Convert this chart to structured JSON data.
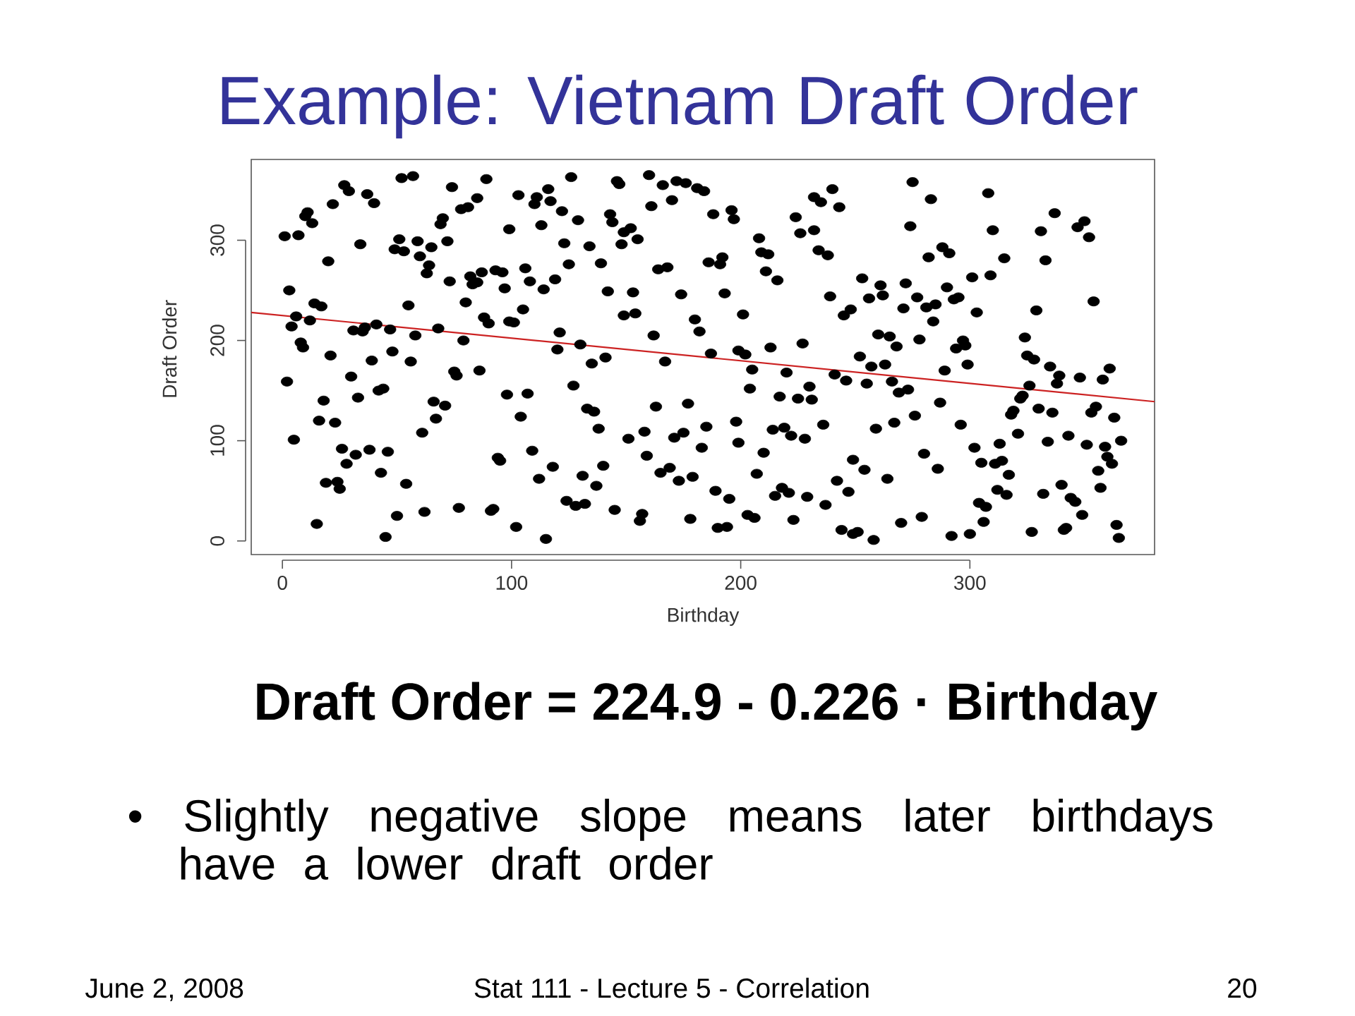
{
  "chart_data": {
    "type": "scatter",
    "title": "Example:  Vietnam Draft Order",
    "xlabel": "Birthday",
    "ylabel": "Draft Order",
    "xlim": [
      -13.6,
      380.6
    ],
    "ylim": [
      -13.6,
      380.6
    ],
    "xticks": [
      0,
      100,
      200,
      300
    ],
    "yticks": [
      0,
      100,
      200,
      300
    ],
    "series": [
      {
        "color": "#000000",
        "marker": "circle",
        "x": [
          52,
          57,
          27,
          29,
          37,
          40,
          22,
          11,
          10,
          13,
          1,
          7,
          34,
          51,
          59,
          49,
          53,
          65,
          60,
          64,
          63,
          20,
          3,
          14,
          17,
          55,
          6,
          12,
          4,
          31,
          35,
          36,
          41,
          47,
          58,
          8,
          9,
          21,
          39,
          48,
          56,
          2,
          30,
          33,
          42,
          44,
          18,
          66,
          16,
          23,
          67,
          61,
          5,
          26,
          32,
          28,
          38,
          46,
          43,
          19,
          24,
          25,
          54,
          15,
          50,
          62,
          45,
          74,
          89,
          85,
          78,
          81,
          70,
          69,
          72,
          99,
          103,
          111,
          110,
          116,
          117,
          122,
          126,
          113,
          129,
          123,
          134,
          146,
          143,
          144,
          73,
          82,
          83,
          85,
          87,
          93,
          96,
          97,
          106,
          108,
          114,
          119,
          125,
          139,
          142,
          80,
          88,
          90,
          99,
          101,
          105,
          121,
          120,
          130,
          135,
          141,
          68,
          79,
          75,
          76,
          86,
          98,
          107,
          104,
          127,
          133,
          136,
          138,
          71,
          94,
          95,
          109,
          118,
          112,
          131,
          140,
          137,
          77,
          91,
          92,
          102,
          115,
          124,
          128,
          132,
          145,
          147,
          160,
          166,
          172,
          176,
          181,
          184,
          170,
          161,
          188,
          196,
          197,
          152,
          149,
          155,
          148,
          208,
          209,
          212,
          211,
          216,
          224,
          226,
          164,
          168,
          186,
          192,
          191,
          153,
          174,
          193,
          149,
          154,
          180,
          182,
          201,
          162,
          167,
          187,
          199,
          202,
          205,
          213,
          204,
          220,
          217,
          225,
          163,
          177,
          151,
          158,
          171,
          175,
          185,
          183,
          198,
          199,
          214,
          219,
          222,
          159,
          165,
          169,
          173,
          179,
          210,
          207,
          189,
          195,
          218,
          215,
          221,
          157,
          156,
          178,
          190,
          194,
          203,
          206,
          223,
          240,
          232,
          235,
          243,
          232,
          234,
          238,
          275,
          283,
          274,
          288,
          291,
          282,
          253,
          261,
          262,
          256,
          239,
          272,
          277,
          271,
          248,
          245,
          281,
          285,
          290,
          293,
          295,
          284,
          301,
          303,
          227,
          260,
          265,
          268,
          278,
          252,
          257,
          263,
          241,
          246,
          255,
          266,
          269,
          273,
          289,
          297,
          298,
          294,
          299,
          230,
          231,
          287,
          276,
          236,
          228,
          259,
          267,
          296,
          302,
          305,
          280,
          286,
          249,
          254,
          242,
          247,
          264,
          229,
          237,
          244,
          249,
          251,
          258,
          270,
          279,
          292,
          300,
          304,
          308,
          310,
          315,
          309,
          337,
          331,
          333,
          347,
          350,
          352,
          354,
          329,
          324,
          325,
          328,
          335,
          339,
          338,
          348,
          361,
          358,
          326,
          323,
          322,
          319,
          318,
          330,
          336,
          355,
          353,
          363,
          321,
          334,
          343,
          351,
          359,
          366,
          313,
          311,
          314,
          317,
          360,
          362,
          356,
          312,
          316,
          332,
          340,
          344,
          346,
          349,
          357,
          307,
          306,
          327,
          341,
          342,
          364,
          365
        ],
        "values": [
          362,
          364,
          355,
          349,
          346,
          337,
          336,
          328,
          324,
          317,
          304,
          305,
          296,
          301,
          299,
          291,
          289,
          293,
          284,
          275,
          267,
          279,
          250,
          237,
          234,
          235,
          224,
          220,
          214,
          210,
          209,
          213,
          216,
          211,
          205,
          198,
          193,
          185,
          180,
          189,
          179,
          159,
          164,
          143,
          150,
          152,
          140,
          139,
          120,
          118,
          122,
          108,
          101,
          92,
          86,
          77,
          91,
          89,
          68,
          58,
          59,
          52,
          57,
          17,
          25,
          29,
          4,
          353,
          361,
          342,
          331,
          333,
          322,
          316,
          299,
          311,
          345,
          343,
          336,
          351,
          339,
          329,
          363,
          315,
          320,
          297,
          294,
          359,
          326,
          318,
          259,
          264,
          256,
          258,
          268,
          270,
          268,
          252,
          272,
          259,
          251,
          261,
          276,
          277,
          249,
          238,
          223,
          217,
          219,
          218,
          231,
          208,
          191,
          196,
          177,
          183,
          212,
          200,
          169,
          165,
          170,
          146,
          147,
          124,
          155,
          132,
          129,
          112,
          135,
          83,
          80,
          90,
          74,
          62,
          65,
          75,
          55,
          33,
          30,
          32,
          14,
          2,
          40,
          35,
          37,
          31,
          356,
          365,
          355,
          359,
          357,
          352,
          349,
          340,
          334,
          326,
          330,
          321,
          312,
          308,
          301,
          296,
          302,
          288,
          286,
          269,
          260,
          323,
          307,
          271,
          273,
          278,
          283,
          276,
          248,
          246,
          247,
          225,
          227,
          221,
          209,
          226,
          205,
          179,
          187,
          190,
          186,
          171,
          193,
          152,
          168,
          144,
          142,
          134,
          137,
          102,
          109,
          103,
          108,
          114,
          93,
          119,
          98,
          111,
          113,
          105,
          85,
          68,
          73,
          60,
          64,
          88,
          67,
          50,
          42,
          53,
          45,
          48,
          27,
          20,
          22,
          13,
          14,
          26,
          23,
          21,
          351,
          343,
          338,
          333,
          310,
          290,
          285,
          358,
          341,
          314,
          293,
          287,
          283,
          262,
          255,
          245,
          242,
          244,
          257,
          243,
          232,
          231,
          225,
          233,
          236,
          253,
          241,
          243,
          219,
          263,
          228,
          197,
          206,
          204,
          194,
          201,
          184,
          174,
          176,
          166,
          160,
          157,
          159,
          148,
          151,
          170,
          200,
          195,
          192,
          176,
          154,
          141,
          138,
          125,
          116,
          102,
          112,
          118,
          116,
          93,
          78,
          87,
          72,
          81,
          71,
          60,
          49,
          62,
          44,
          36,
          11,
          7,
          9,
          1,
          18,
          24,
          5,
          7,
          38,
          347,
          310,
          282,
          265,
          327,
          309,
          280,
          313,
          319,
          303,
          239,
          230,
          203,
          185,
          181,
          174,
          165,
          157,
          163,
          172,
          161,
          155,
          145,
          142,
          130,
          126,
          132,
          128,
          134,
          128,
          123,
          107,
          99,
          105,
          96,
          94,
          100,
          97,
          77,
          80,
          66,
          84,
          77,
          70,
          51,
          46,
          47,
          56,
          43,
          39,
          26,
          53,
          34,
          19,
          9,
          11,
          13,
          16,
          3
        ]
      },
      {
        "type": "line",
        "color": "#cc2222",
        "x": [
          -13.6,
          380.6
        ],
        "values": [
          228,
          139
        ]
      }
    ],
    "annotations": [
      "Draft Order = 224.9 - 0.226 · Birthday",
      "• Slightly negative slope means later birthdays have a lower draft order",
      "June 2, 2008",
      "Stat 111 - Lecture 5 - Correlation",
      "20"
    ]
  }
}
